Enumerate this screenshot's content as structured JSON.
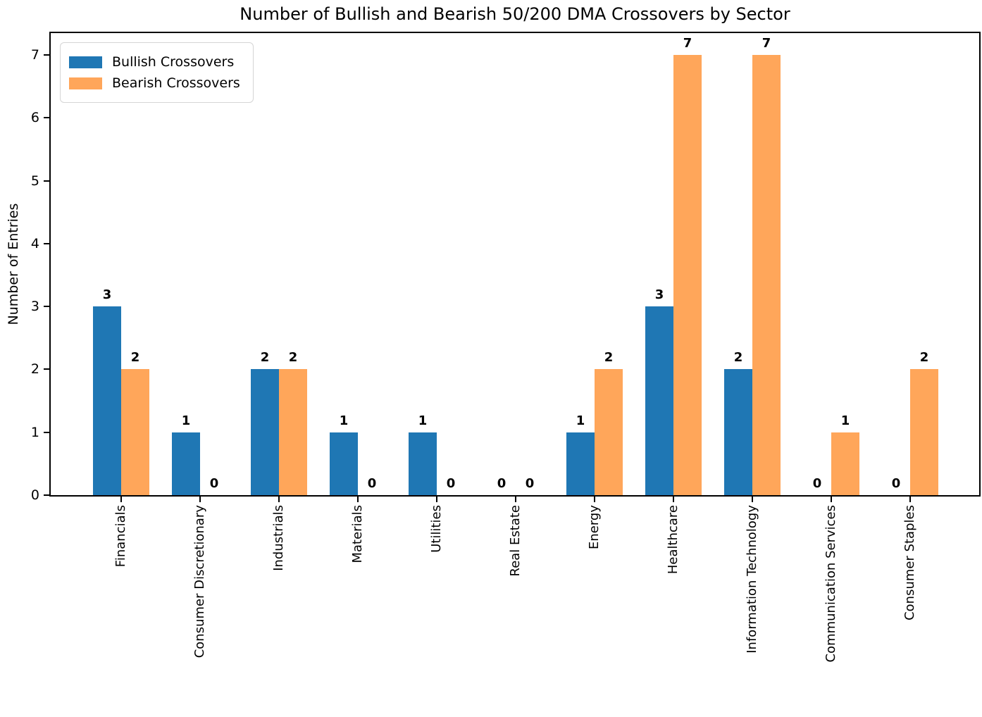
{
  "chart_data": {
    "type": "bar",
    "title": "Number of Bullish and Bearish 50/200 DMA Crossovers by Sector",
    "xlabel": "",
    "ylabel": "Number of Entries",
    "categories": [
      "Financials",
      "Consumer Discretionary",
      "Industrials",
      "Materials",
      "Utilities",
      "Real Estate",
      "Energy",
      "Healthcare",
      "Information Technology",
      "Communication Services",
      "Consumer Staples"
    ],
    "series": [
      {
        "name": "Bullish Crossovers",
        "color": "#1f77b4",
        "values": [
          3,
          1,
          2,
          1,
          1,
          0,
          1,
          3,
          2,
          0,
          0
        ]
      },
      {
        "name": "Bearish Crossovers",
        "color": "#ffa65a",
        "values": [
          2,
          0,
          2,
          0,
          0,
          0,
          2,
          7,
          7,
          1,
          2
        ]
      }
    ],
    "yticks": [
      0,
      1,
      2,
      3,
      4,
      5,
      6,
      7
    ],
    "ylim": [
      0,
      7.35
    ],
    "legend_position": "upper left",
    "grid": false,
    "bar_value_labels": true,
    "axis_color": "#000000",
    "background_color": "#ffffff"
  }
}
